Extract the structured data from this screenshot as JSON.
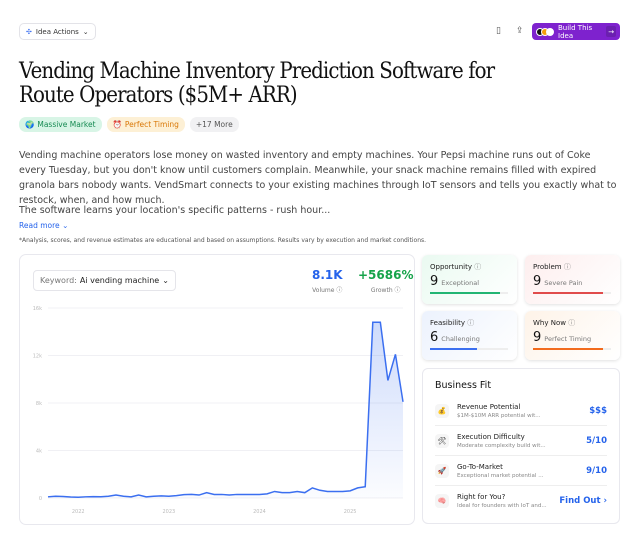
{
  "toolbar": {
    "idea_actions": "Idea Actions",
    "build_label": "Build This Idea"
  },
  "title": "Vending Machine Inventory Prediction Software for Route Operators ($5M+ ARR)",
  "tags": [
    {
      "label": "Massive Market",
      "icon": "globe"
    },
    {
      "label": "Perfect Timing",
      "icon": "alarm-clock"
    },
    {
      "label": "+17 More"
    }
  ],
  "description": "Vending machine operators lose money on wasted inventory and empty machines. Your Pepsi machine runs out of Coke every Tuesday, but you don't know until customers complain. Meanwhile, your snack machine remains filled with expired granola bars nobody wants. VendSmart connects to your existing machines through IoT sensors and tells you exactly what to restock, when, and how much.",
  "description2": "The software learns your location's specific patterns - rush hour...",
  "read_more": "Read more",
  "disclaimer": "*Analysis, scores, and revenue estimates are educational and based on assumptions. Results vary by execution and market conditions.",
  "keyword": {
    "label": "Keyword:",
    "value": "Ai vending machine"
  },
  "stats": {
    "volume": "8.1K",
    "volume_label": "Volume",
    "growth": "+5686%",
    "growth_label": "Growth"
  },
  "chart_data": {
    "type": "area",
    "ylim": [
      0,
      16000
    ],
    "yticks": [
      "0",
      "4k",
      "8k",
      "12k",
      "16k"
    ],
    "xticks": [
      "2022",
      "2023",
      "2024",
      "2025"
    ],
    "grid": true,
    "color": "#3b6ff0",
    "x_start": "2021-09",
    "interval": "month",
    "values": [
      100,
      150,
      130,
      80,
      60,
      100,
      120,
      110,
      150,
      250,
      150,
      100,
      250,
      100,
      150,
      180,
      150,
      200,
      280,
      300,
      250,
      450,
      300,
      300,
      250,
      300,
      300,
      300,
      300,
      350,
      550,
      450,
      450,
      550,
      450,
      850,
      650,
      550,
      550,
      550,
      600,
      850,
      950,
      14800,
      14800,
      9900,
      12100,
      8100
    ]
  },
  "scores": [
    {
      "title": "Opportunity",
      "value": "9",
      "label": "Exceptional",
      "fraction": 0.9,
      "color": "#22b573",
      "bg": "#eafaf1"
    },
    {
      "title": "Problem",
      "value": "9",
      "label": "Severe Pain",
      "fraction": 0.9,
      "color": "#e04b4b",
      "bg": "#fdeeee"
    },
    {
      "title": "Feasibility",
      "value": "6",
      "label": "Challenging",
      "fraction": 0.6,
      "color": "#3b6ff0",
      "bg": "#ecf2fd"
    },
    {
      "title": "Why Now",
      "value": "9",
      "label": "Perfect Timing",
      "fraction": 0.9,
      "color": "#f26b1d",
      "bg": "#fef3e8"
    }
  ],
  "business_fit": {
    "title": "Business Fit",
    "rows": [
      {
        "icon": "money-bag",
        "emoji": "💰",
        "title": "Revenue Potential",
        "sub": "$1M-$10M ARR potential wit...",
        "value": "$$$"
      },
      {
        "icon": "tools",
        "emoji": "🛠",
        "title": "Execution Difficulty",
        "sub": "Moderate complexity build wit...",
        "value": "5/10"
      },
      {
        "icon": "rocket",
        "emoji": "🚀",
        "title": "Go-To-Market",
        "sub": "Exceptional market potential ...",
        "value": "9/10"
      },
      {
        "icon": "brain",
        "emoji": "🧠",
        "title": "Right for You?",
        "sub": "Ideal for founders with IoT and...",
        "value": "Find Out ›"
      }
    ]
  }
}
